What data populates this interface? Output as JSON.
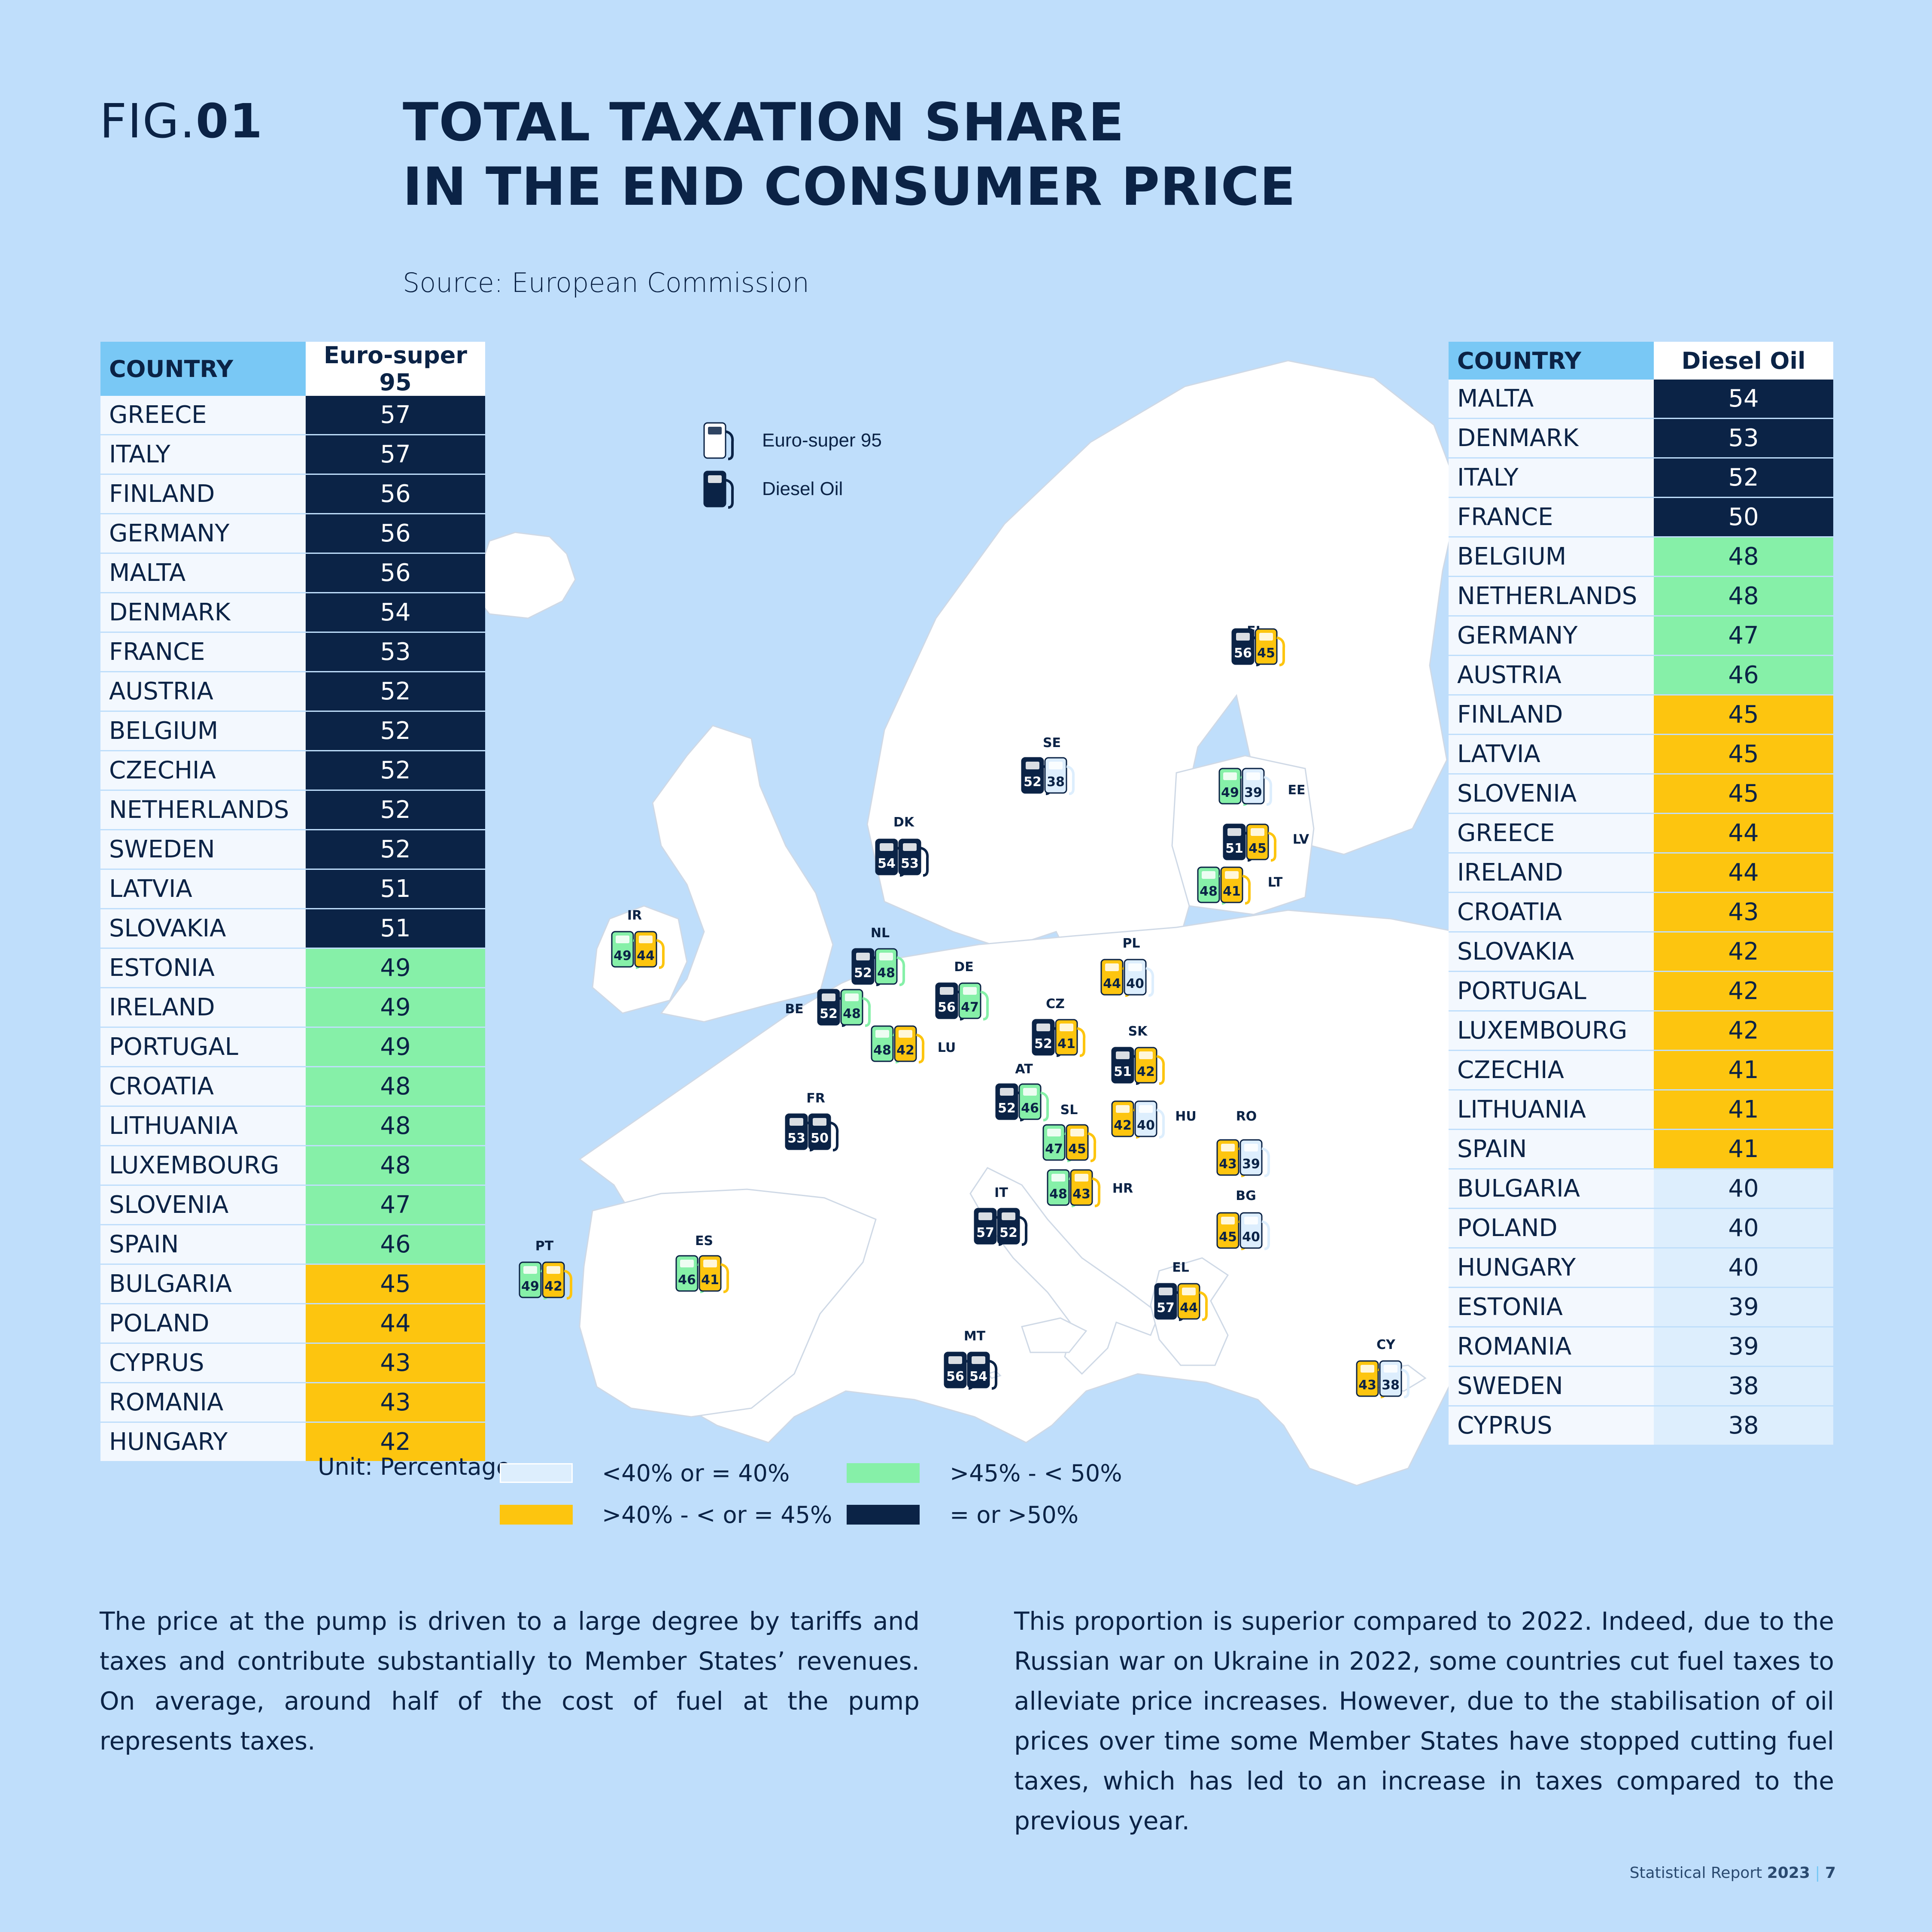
{
  "header": {
    "fig_prefix": "FIG.",
    "fig_number": "01",
    "title_line1": "TOTAL TAXATION SHARE",
    "title_line2": "IN THE END CONSUMER PRICE",
    "source": "Source: European Commission"
  },
  "colors": {
    "background": "#bfdefb",
    "band_ge_50": "#0b2346",
    "band_45_50": "#86f0a8",
    "band_40_45": "#fdc50f",
    "band_le_40": "#ddeefd",
    "header_country": "#79c8f5"
  },
  "left_table": {
    "col_country": "COUNTRY",
    "col_value": "Euro-super 95",
    "rows": [
      {
        "country": "GREECE",
        "value": "57",
        "band": "dark"
      },
      {
        "country": "ITALY",
        "value": "57",
        "band": "dark"
      },
      {
        "country": "FINLAND",
        "value": "56",
        "band": "dark"
      },
      {
        "country": "GERMANY",
        "value": "56",
        "band": "dark"
      },
      {
        "country": "MALTA",
        "value": "56",
        "band": "dark"
      },
      {
        "country": "DENMARK",
        "value": "54",
        "band": "dark"
      },
      {
        "country": "FRANCE",
        "value": "53",
        "band": "dark"
      },
      {
        "country": "AUSTRIA",
        "value": "52",
        "band": "dark"
      },
      {
        "country": "BELGIUM",
        "value": "52",
        "band": "dark"
      },
      {
        "country": "CZECHIA",
        "value": "52",
        "band": "dark"
      },
      {
        "country": "NETHERLANDS",
        "value": "52",
        "band": "dark"
      },
      {
        "country": "SWEDEN",
        "value": "52",
        "band": "dark"
      },
      {
        "country": "LATVIA",
        "value": "51",
        "band": "dark"
      },
      {
        "country": "SLOVAKIA",
        "value": "51",
        "band": "dark"
      },
      {
        "country": "ESTONIA",
        "value": "49",
        "band": "green"
      },
      {
        "country": "IRELAND",
        "value": "49",
        "band": "green"
      },
      {
        "country": "PORTUGAL",
        "value": "49",
        "band": "green"
      },
      {
        "country": "CROATIA",
        "value": "48",
        "band": "green"
      },
      {
        "country": "LITHUANIA",
        "value": "48",
        "band": "green"
      },
      {
        "country": "LUXEMBOURG",
        "value": "48",
        "band": "green"
      },
      {
        "country": "SLOVENIA",
        "value": "47",
        "band": "green"
      },
      {
        "country": "SPAIN",
        "value": "46",
        "band": "green"
      },
      {
        "country": "BULGARIA",
        "value": "45",
        "band": "yellow"
      },
      {
        "country": "POLAND",
        "value": "44",
        "band": "yellow"
      },
      {
        "country": "CYPRUS",
        "value": "43",
        "band": "yellow"
      },
      {
        "country": "ROMANIA",
        "value": "43",
        "band": "yellow"
      },
      {
        "country": "HUNGARY",
        "value": "42",
        "band": "yellow"
      }
    ]
  },
  "right_table": {
    "col_country": "COUNTRY",
    "col_value": "Diesel Oil",
    "rows": [
      {
        "country": "MALTA",
        "value": "54",
        "band": "dark"
      },
      {
        "country": "DENMARK",
        "value": "53",
        "band": "dark"
      },
      {
        "country": "ITALY",
        "value": "52",
        "band": "dark"
      },
      {
        "country": "FRANCE",
        "value": "50",
        "band": "dark"
      },
      {
        "country": "BELGIUM",
        "value": "48",
        "band": "green"
      },
      {
        "country": "NETHERLANDS",
        "value": "48",
        "band": "green"
      },
      {
        "country": "GERMANY",
        "value": "47",
        "band": "green"
      },
      {
        "country": "AUSTRIA",
        "value": "46",
        "band": "green"
      },
      {
        "country": "FINLAND",
        "value": "45",
        "band": "yellow"
      },
      {
        "country": "LATVIA",
        "value": "45",
        "band": "yellow"
      },
      {
        "country": "SLOVENIA",
        "value": "45",
        "band": "yellow"
      },
      {
        "country": "GREECE",
        "value": "44",
        "band": "yellow"
      },
      {
        "country": "IRELAND",
        "value": "44",
        "band": "yellow"
      },
      {
        "country": "CROATIA",
        "value": "43",
        "band": "yellow"
      },
      {
        "country": "SLOVAKIA",
        "value": "42",
        "band": "yellow"
      },
      {
        "country": "PORTUGAL",
        "value": "42",
        "band": "yellow"
      },
      {
        "country": "LUXEMBOURG",
        "value": "42",
        "band": "yellow"
      },
      {
        "country": "CZECHIA",
        "value": "41",
        "band": "yellow"
      },
      {
        "country": "LITHUANIA",
        "value": "41",
        "band": "yellow"
      },
      {
        "country": "SPAIN",
        "value": "41",
        "band": "yellow"
      },
      {
        "country": "BULGARIA",
        "value": "40",
        "band": "light"
      },
      {
        "country": "POLAND",
        "value": "40",
        "band": "light"
      },
      {
        "country": "HUNGARY",
        "value": "40",
        "band": "light"
      },
      {
        "country": "ESTONIA",
        "value": "39",
        "band": "light"
      },
      {
        "country": "ROMANIA",
        "value": "39",
        "band": "light"
      },
      {
        "country": "SWEDEN",
        "value": "38",
        "band": "light"
      },
      {
        "country": "CYPRUS",
        "value": "38",
        "band": "light"
      }
    ]
  },
  "unit": "Unit: Percentage",
  "legend": {
    "le40": "<40% or = 40%",
    "r40_45": ">40% - < or = 45%",
    "r45_50": ">45% - < 50%",
    "ge50": "= or >50%"
  },
  "map": {
    "legend_petrol": "Euro-super 95",
    "legend_diesel": "Diesel Oil",
    "countries": [
      {
        "code": "FI",
        "petrol": 56,
        "diesel": 45
      },
      {
        "code": "SE",
        "petrol": 52,
        "diesel": 38
      },
      {
        "code": "EE",
        "petrol": 49,
        "diesel": 39
      },
      {
        "code": "LV",
        "petrol": 51,
        "diesel": 45
      },
      {
        "code": "LT",
        "petrol": 48,
        "diesel": 41
      },
      {
        "code": "DK",
        "petrol": 54,
        "diesel": 53
      },
      {
        "code": "IR",
        "petrol": 49,
        "diesel": 44
      },
      {
        "code": "NL",
        "petrol": 52,
        "diesel": 48
      },
      {
        "code": "BE",
        "petrol": 52,
        "diesel": 48
      },
      {
        "code": "LU",
        "petrol": 48,
        "diesel": 42
      },
      {
        "code": "DE",
        "petrol": 56,
        "diesel": 47
      },
      {
        "code": "PL",
        "petrol": 44,
        "diesel": 40
      },
      {
        "code": "CZ",
        "petrol": 52,
        "diesel": 41
      },
      {
        "code": "SK",
        "petrol": 51,
        "diesel": 42
      },
      {
        "code": "AT",
        "petrol": 52,
        "diesel": 46
      },
      {
        "code": "HU",
        "petrol": 42,
        "diesel": 40
      },
      {
        "code": "SL",
        "petrol": 47,
        "diesel": 45
      },
      {
        "code": "HR",
        "petrol": 48,
        "diesel": 43
      },
      {
        "code": "RO",
        "petrol": 43,
        "diesel": 39
      },
      {
        "code": "BG",
        "petrol": 45,
        "diesel": 40
      },
      {
        "code": "FR",
        "petrol": 53,
        "diesel": 50
      },
      {
        "code": "IT",
        "petrol": 57,
        "diesel": 52
      },
      {
        "code": "ES",
        "petrol": 46,
        "diesel": 41
      },
      {
        "code": "PT",
        "petrol": 49,
        "diesel": 42
      },
      {
        "code": "EL",
        "petrol": 57,
        "diesel": 44
      },
      {
        "code": "MT",
        "petrol": 56,
        "diesel": 54
      },
      {
        "code": "CY",
        "petrol": 43,
        "diesel": 38
      }
    ]
  },
  "text": {
    "left": "The price at the pump is driven to a large degree by tariffs and taxes and contribute substantially to Member States’ revenues. On average, around half of the cost of fuel at the pump represents taxes.",
    "right": "This proportion is superior compared to 2022. Indeed, due to the Russian war on Ukraine in 2022, some countries cut fuel taxes to alleviate price increases. However, due to the stabilisation of oil prices over time some Member States have stopped cutting fuel taxes, which has led to an increase in taxes compared to the previous year."
  },
  "footer": {
    "label": "Statistical Report",
    "year": "2023",
    "sep": "|",
    "page": "7"
  }
}
